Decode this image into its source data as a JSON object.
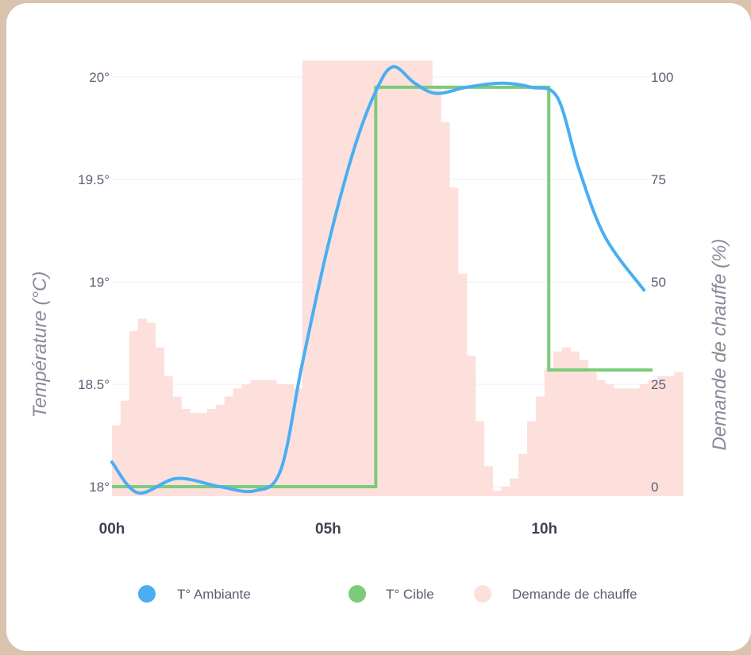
{
  "chart_data": {
    "type": "line",
    "x_ticks": [
      "00h",
      "05h",
      "10h"
    ],
    "y_left": {
      "label": "Température (°C)",
      "ticks": [
        "18°",
        "18.5°",
        "19°",
        "19.5°",
        "20°"
      ],
      "range": [
        18,
        20
      ]
    },
    "y_right": {
      "label": "Demande de chauffe (%)",
      "ticks": [
        "0",
        "25",
        "50",
        "75",
        "100"
      ],
      "range": [
        0,
        100
      ]
    },
    "x_range": [
      0,
      12.5
    ],
    "grid": true,
    "legend_position": "bottom",
    "series": [
      {
        "name": "T° Ambiante",
        "type": "line",
        "axis": "left",
        "color": "#4aaef2",
        "points": [
          [
            0,
            18.12
          ],
          [
            0.6,
            17.97
          ],
          [
            1.5,
            18.04
          ],
          [
            2.5,
            18.0
          ],
          [
            3.3,
            17.98
          ],
          [
            3.9,
            18.08
          ],
          [
            4.4,
            18.6
          ],
          [
            5.0,
            19.18
          ],
          [
            5.6,
            19.65
          ],
          [
            6.1,
            19.93
          ],
          [
            6.5,
            20.05
          ],
          [
            7.0,
            19.97
          ],
          [
            7.5,
            19.92
          ],
          [
            8.2,
            19.95
          ],
          [
            9.0,
            19.97
          ],
          [
            9.7,
            19.95
          ],
          [
            10.3,
            19.9
          ],
          [
            10.8,
            19.55
          ],
          [
            11.4,
            19.22
          ],
          [
            12.3,
            18.96
          ]
        ]
      },
      {
        "name": "T° Cible",
        "type": "step",
        "axis": "left",
        "color": "#7ccb7a",
        "points": [
          [
            0,
            18.0
          ],
          [
            6.1,
            18.0
          ],
          [
            6.1,
            19.95
          ],
          [
            10.1,
            19.95
          ],
          [
            10.1,
            18.57
          ],
          [
            12.5,
            18.57
          ]
        ]
      },
      {
        "name": "Demande de chauffe",
        "type": "bar",
        "axis": "right",
        "color": "#fde0dc",
        "bin_width": 0.2,
        "x_start": 0,
        "values": [
          15,
          21,
          38,
          41,
          40,
          34,
          27,
          22,
          19,
          18,
          18,
          19,
          20,
          22,
          24,
          25,
          26,
          26,
          26,
          25,
          25,
          24,
          104,
          104,
          104,
          104,
          104,
          104,
          104,
          104,
          104,
          104,
          104,
          104,
          104,
          104,
          104,
          97,
          89,
          73,
          52,
          32,
          16,
          5,
          -1,
          0,
          2,
          8,
          16,
          22,
          29,
          33,
          34,
          33,
          31,
          28,
          26,
          25,
          24,
          24,
          24,
          25,
          26,
          27,
          27,
          28
        ]
      }
    ],
    "legend": [
      {
        "name": "T° Ambiante",
        "color": "#4aaef2"
      },
      {
        "name": "T° Cible",
        "color": "#7ccb7a"
      },
      {
        "name": "Demande de chauffe",
        "color": "#fde0dc"
      }
    ]
  }
}
